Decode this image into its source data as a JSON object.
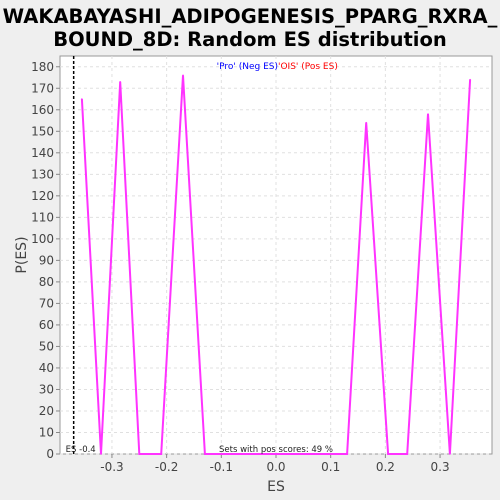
{
  "chart_data": {
    "type": "line",
    "title_line1": "WAKABAYASHI_ADIPOGENESIS_PPARG_RXRA_",
    "title_line2": "BOUND_8D: Random ES distribution",
    "xlabel": "ES",
    "ylabel": "P(ES)",
    "xlim": [
      -0.395,
      0.395
    ],
    "ylim": [
      0,
      185
    ],
    "x_ticks": [
      -0.3,
      -0.2,
      -0.1,
      0.0,
      0.1,
      0.2,
      0.3
    ],
    "x_tick_labels": [
      "-0.3",
      "-0.2",
      "-0.1",
      "0.0",
      "0.1",
      "0.2",
      "0.3"
    ],
    "y_ticks": [
      0,
      10,
      20,
      30,
      40,
      50,
      60,
      70,
      80,
      90,
      100,
      110,
      120,
      130,
      140,
      150,
      160,
      170,
      180
    ],
    "y_tick_labels": [
      "0",
      "10",
      "20",
      "30",
      "40",
      "50",
      "60",
      "70",
      "80",
      "90",
      "100",
      "110",
      "120",
      "130",
      "140",
      "150",
      "160",
      "170",
      "180"
    ],
    "grid": true,
    "series": [
      {
        "color": "#ff33ff",
        "x": [
          -0.355,
          -0.32,
          -0.285,
          -0.25,
          -0.21,
          -0.17,
          -0.13,
          -0.09,
          -0.05,
          -0.01,
          0.03,
          0.07,
          0.11,
          0.13,
          0.165,
          0.205,
          0.24,
          0.278,
          0.318,
          0.355
        ],
        "y": [
          165,
          0,
          173,
          0,
          0,
          176,
          0,
          0,
          0,
          0,
          0,
          0,
          0,
          0,
          154,
          0,
          0,
          158,
          0,
          174
        ]
      }
    ],
    "actual_es": {
      "x": -0.37,
      "label": "ES -0.4",
      "color": "#000000"
    },
    "legend": {
      "pos_label": "'Pro' (Neg ES)",
      "pos_color": "#0000ff",
      "neg_label": "'OIS' (Pos ES)",
      "neg_color": "#ff0000",
      "placement": "top-center"
    },
    "annotation": "Sets with pos scores: 49 %",
    "colors": {
      "background": "#efefef",
      "plot_background": "#ffffff",
      "grid": "#e0e0e0",
      "series_line": "#ff33ff"
    }
  }
}
